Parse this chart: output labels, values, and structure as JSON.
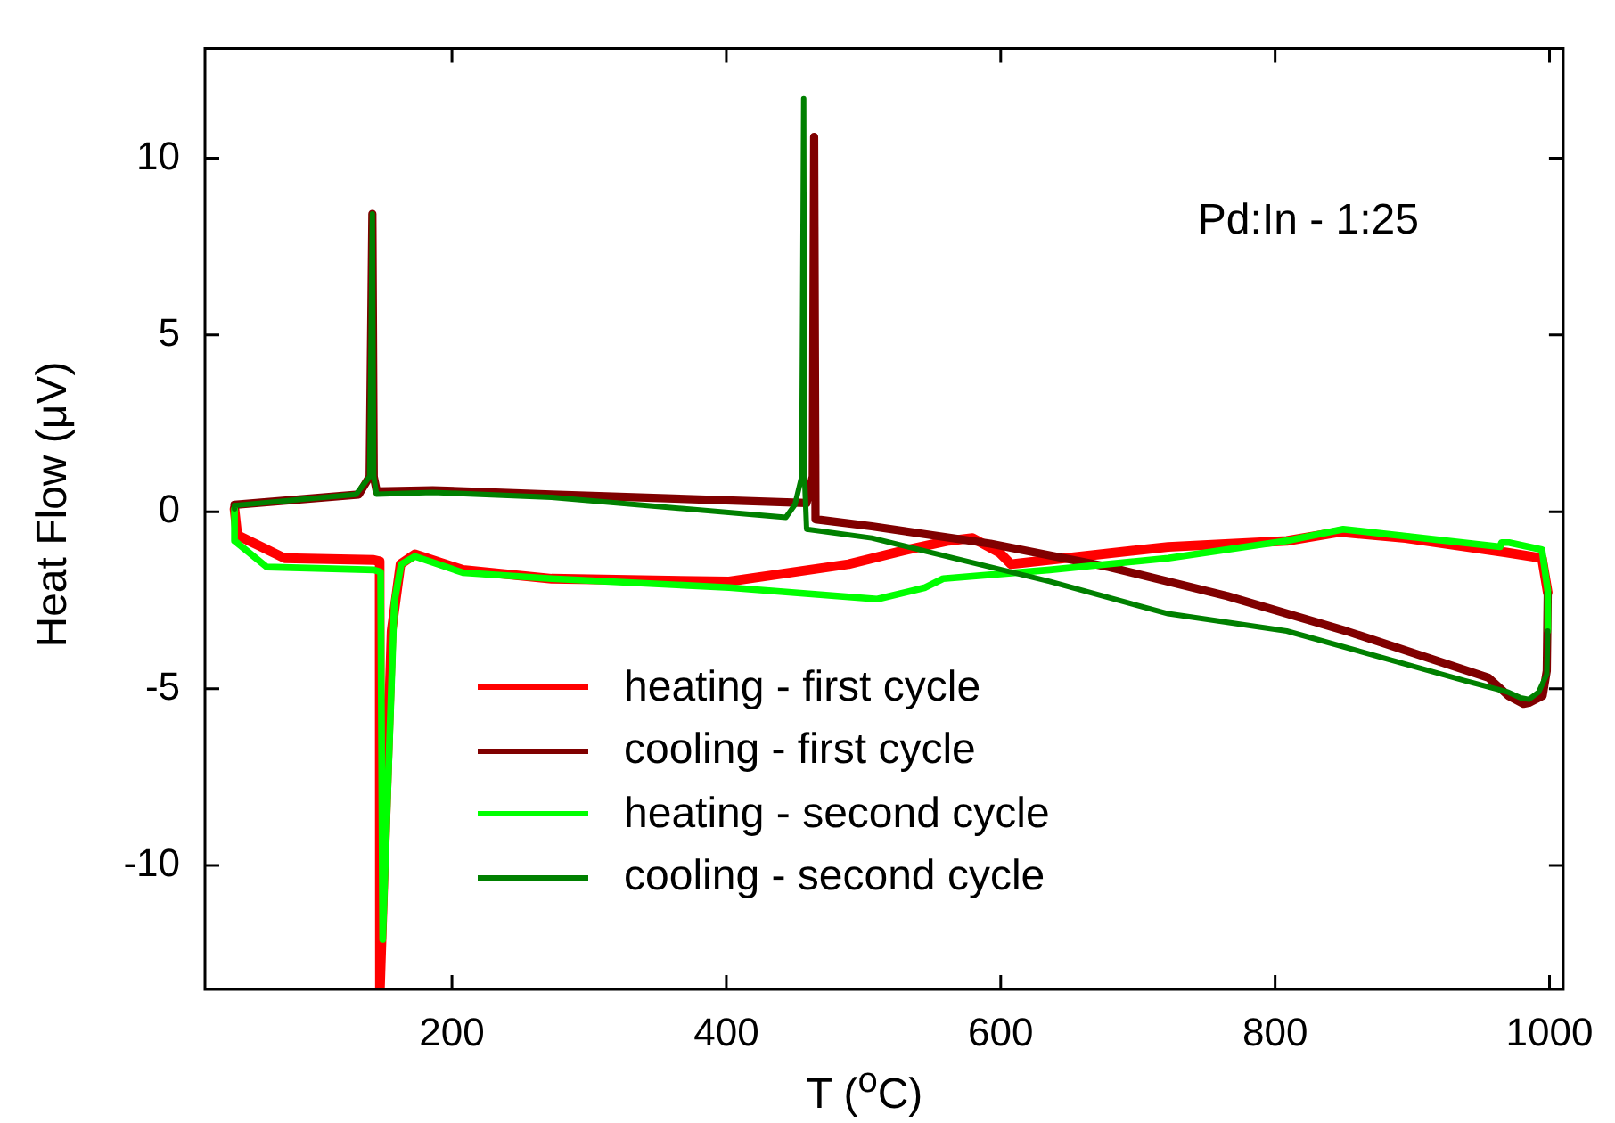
{
  "chart_data": {
    "type": "line",
    "xlabel": "T ($^{o}$C)",
    "ylabel": "Heat Flow (μV)",
    "xlim": [
      20,
      1010
    ],
    "xticks": [
      200,
      400,
      600,
      800,
      1000
    ],
    "ylim": [
      -13.5,
      13.1
    ],
    "yticks": [
      -10,
      -5,
      0,
      5,
      10
    ],
    "grid": false,
    "legend": "bottom left",
    "marker": "none",
    "line_style": "solid",
    "annotations": [
      "Pd:In - 1:25"
    ],
    "series": [
      {
        "name": "heating - first cycle",
        "color": "#ff0000",
        "x": [
          41.5,
          43.6,
          78,
          143,
          147.3,
          147.5,
          156,
          162.5,
          173,
          208,
          272.6,
          402,
          489,
          532,
          562,
          579.5,
          599,
          607.5,
          614,
          722,
          808.5,
          847,
          895,
          968.5,
          994.5,
          998.7
        ],
        "values": [
          0.08,
          -0.66,
          -1.31,
          -1.36,
          -1.4,
          -13.5,
          -3.37,
          -1.48,
          -1.2,
          -1.64,
          -1.89,
          -1.97,
          -1.48,
          -1.07,
          -0.82,
          -0.74,
          -1.15,
          -1.48,
          -1.45,
          -0.99,
          -0.82,
          -0.57,
          -0.74,
          -1.15,
          -1.31,
          -2.28
        ]
      },
      {
        "name": "cooling - first cycle",
        "color": "#800000",
        "x": [
          998.7,
          998,
          995,
          985,
          981,
          970,
          955.5,
          851.8,
          765,
          679,
          592.5,
          506,
          465,
          464,
          463,
          458.5,
          272.6,
          186,
          145.2,
          143,
          142,
          140,
          132,
          41.5,
          41.5
        ],
        "values": [
          -2.3,
          -4.5,
          -5.2,
          -5.4,
          -5.43,
          -5.2,
          -4.69,
          -3.37,
          -2.38,
          -1.56,
          -0.9,
          -0.41,
          -0.21,
          10.6,
          1,
          0.25,
          0.49,
          0.61,
          0.58,
          1,
          8.42,
          1,
          0.49,
          0.2,
          0.08
        ]
      },
      {
        "name": "heating - second cycle",
        "color": "#00ff00",
        "x": [
          41.5,
          41.5,
          65,
          143,
          148,
          149.5,
          158,
          163,
          173,
          208,
          272.6,
          402,
          510,
          545,
          558,
          635.7,
          722,
          808.5,
          849.6,
          964,
          965,
          970.5,
          994.5,
          998.7,
          998.7
        ],
        "values": [
          0.08,
          -0.82,
          -1.56,
          -1.64,
          -1.7,
          -12.09,
          -2.55,
          -1.48,
          -1.26,
          -1.72,
          -1.89,
          -2.14,
          -2.47,
          -2.14,
          -1.89,
          -1.64,
          -1.31,
          -0.82,
          -0.49,
          -0.99,
          -0.87,
          -0.87,
          -1.07,
          -2.22,
          -3.37
        ]
      },
      {
        "name": "cooling - second cycle",
        "color": "#008000",
        "x": [
          998.7,
          998,
          992,
          985,
          979,
          970,
          938,
          808.5,
          722,
          635.7,
          549,
          506,
          458.5,
          457,
          456.4,
          455,
          450,
          443.4,
          272.6,
          186,
          145,
          143,
          142,
          140,
          130,
          41.5,
          41.5
        ],
        "values": [
          -3.37,
          -4.6,
          -5.1,
          -5.3,
          -5.26,
          -5.1,
          -4.77,
          -3.37,
          -2.88,
          -1.97,
          -1.15,
          -0.74,
          -0.49,
          1,
          11.68,
          1,
          0.2,
          -0.16,
          0.41,
          0.55,
          0.5,
          1,
          8.42,
          1,
          0.49,
          0.18,
          0.08
        ]
      }
    ]
  }
}
